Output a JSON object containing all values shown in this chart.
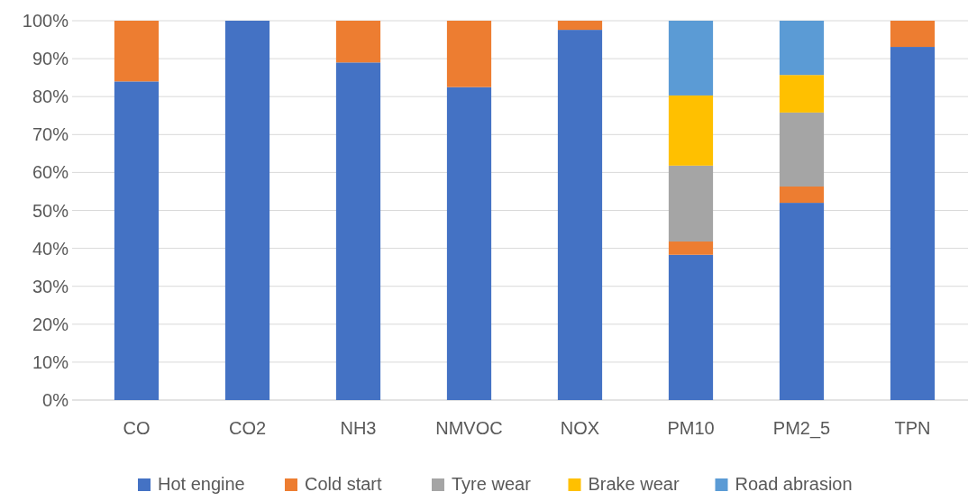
{
  "chart_data": {
    "type": "bar",
    "stacked": true,
    "categories": [
      "CO",
      "CO2",
      "NH3",
      "NMVOC",
      "NOX",
      "PM10",
      "PM2_5",
      "TPN"
    ],
    "series": [
      {
        "name": "Hot engine",
        "color": "#4472c4",
        "values": [
          84,
          100,
          89,
          82.5,
          97.6,
          38.3,
          52,
          93.1
        ]
      },
      {
        "name": "Cold start",
        "color": "#ed7d31",
        "values": [
          16,
          0,
          11,
          17.5,
          2.4,
          3.5,
          4.3,
          6.9
        ]
      },
      {
        "name": "Tyre wear",
        "color": "#a5a5a5",
        "values": [
          0,
          0,
          0,
          0,
          0,
          20,
          19.5,
          0
        ]
      },
      {
        "name": "Brake wear",
        "color": "#ffc000",
        "values": [
          0,
          0,
          0,
          0,
          0,
          18.5,
          9.9,
          0
        ]
      },
      {
        "name": "Road abrasion",
        "color": "#5b9bd5",
        "values": [
          0,
          0,
          0,
          0,
          0,
          19.7,
          14.3,
          0
        ]
      }
    ],
    "ylim": [
      0,
      100
    ],
    "yticks": [
      {
        "value": 0,
        "label": "0%"
      },
      {
        "value": 10,
        "label": "10%"
      },
      {
        "value": 20,
        "label": "20%"
      },
      {
        "value": 30,
        "label": "30%"
      },
      {
        "value": 40,
        "label": "40%"
      },
      {
        "value": 50,
        "label": "50%"
      },
      {
        "value": 60,
        "label": "60%"
      },
      {
        "value": 70,
        "label": "70%"
      },
      {
        "value": 80,
        "label": "80%"
      },
      {
        "value": 90,
        "label": "90%"
      },
      {
        "value": 100,
        "label": "100%"
      }
    ],
    "grid": "y",
    "legend": "bottom"
  }
}
